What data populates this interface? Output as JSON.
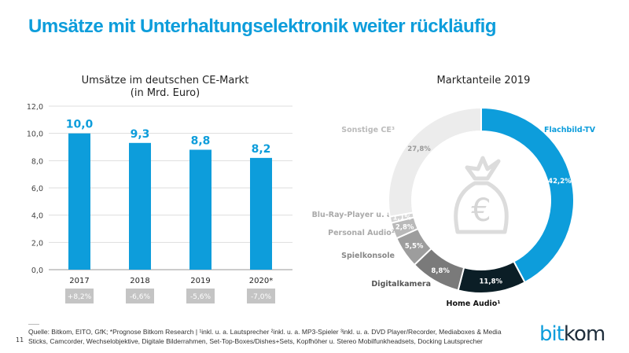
{
  "title": "Umsätze mit Unterhaltungselektronik weiter rückläufig",
  "colors": {
    "accent": "#0d9ddb",
    "dark": "#0b1e26",
    "change_box": "#c4c4c4"
  },
  "chart_data": [
    {
      "type": "bar",
      "title_line1": "Umsätze im deutschen CE-Markt",
      "title_line2": "(in Mrd. Euro)",
      "categories": [
        "2017",
        "2018",
        "2019",
        "2020*"
      ],
      "values": [
        10.0,
        9.3,
        8.8,
        8.2
      ],
      "value_labels": [
        "10,0",
        "9,3",
        "8,8",
        "8,2"
      ],
      "changes": [
        "+8,2%",
        "-6,6%",
        "-5,6%",
        "-7,0%"
      ],
      "ylim": [
        0,
        12
      ],
      "yticks": [
        "0,0",
        "2,0",
        "4,0",
        "6,0",
        "8,0",
        "10,0",
        "12,0"
      ],
      "grid": true
    },
    {
      "type": "pie",
      "title": "Marktanteile 2019",
      "slices": [
        {
          "label": "Flachbild-TV",
          "value": 42.2,
          "value_label": "42,2%",
          "color": "#0d9ddb"
        },
        {
          "label": "Home Audio¹",
          "value": 11.8,
          "value_label": "11,8%",
          "color": "#0b1e26"
        },
        {
          "label": "Digitalkamera",
          "value": 8.8,
          "value_label": "8,8%",
          "color": "#7a7a7a"
        },
        {
          "label": "Spielkonsole",
          "value": 5.5,
          "value_label": "5,5%",
          "color": "#9d9d9d"
        },
        {
          "label": "Personal Audio²",
          "value": 2.8,
          "value_label": "2,8%",
          "color": "#b9b9b9"
        },
        {
          "label": "Blu-Ray-Player u. a.",
          "value": 1.1,
          "value_label": "1,1%",
          "color": "#d4d4d4"
        },
        {
          "label": "Sonstige CE³",
          "value": 27.8,
          "value_label": "27,8%",
          "color": "#ececec"
        }
      ],
      "center_icon": "euro-money-bag-icon"
    }
  ],
  "footer": {
    "source_line1": "Quelle: Bitkom, EITO, GfK; *Prognose Bitkom Research | ¹inkl. u. a. Lautsprecher ²inkl. u. a. MP3-Spieler ³inkl. u. a. DVD Player/Recorder, Mediaboxes & Media",
    "source_line2": "Sticks, Camcorder, Wechselobjektive, Digitale Bilderrahmen, Set-Top-Boxes/Dishes+Sets, Kopfhöher u. Stereo Mobilfunkheadsets, Docking Lautsprecher",
    "page_number": "11",
    "logo": "bitkom"
  }
}
